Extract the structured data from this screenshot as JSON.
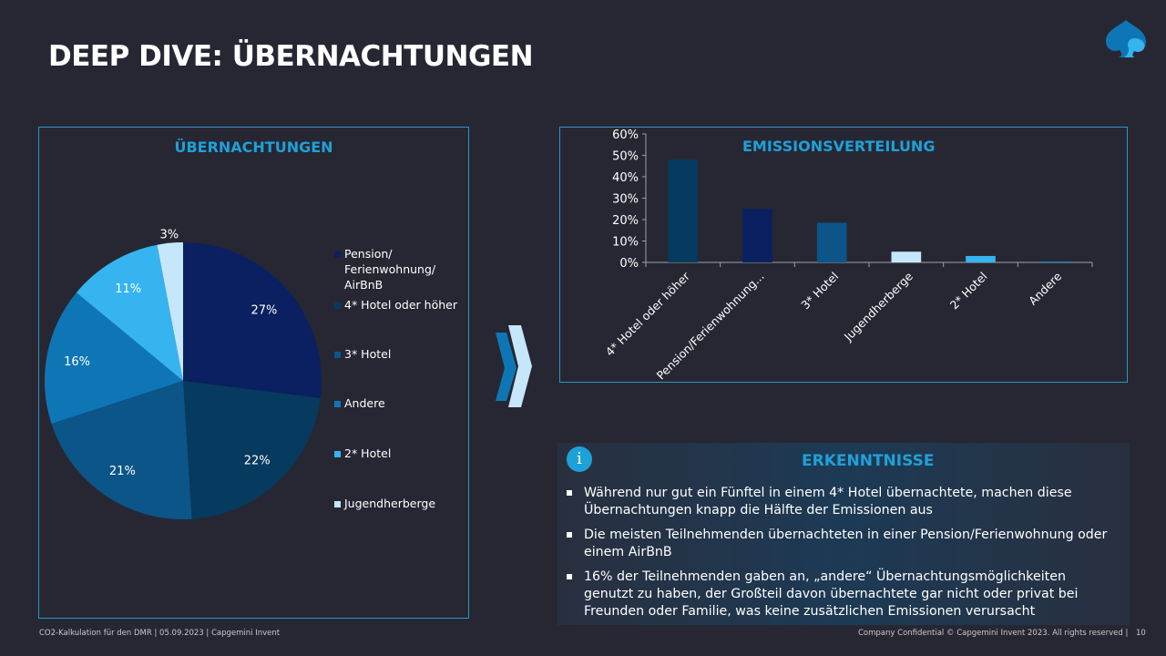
{
  "slide": {
    "title": "DEEP DIVE: ÜBERNACHTUNGEN",
    "logo_icon": "spade-logo-icon"
  },
  "pie_panel": {
    "title": "ÜBERNACHTUNGEN"
  },
  "bar_panel": {
    "title": "EMISSIONSVERTEILUNG"
  },
  "insights": {
    "icon": "info-icon",
    "icon_glyph": "i",
    "title": "ERKENNTNISSE",
    "bullets": [
      "Während nur gut ein Fünftel in einem 4* Hotel übernachtete, machen diese Übernachtungen knapp die Hälfte der Emissionen aus",
      "Die meisten Teilnehmenden übernachteten in einer Pension/Ferienwohnung oder einem AirBnB",
      "16% der Teilnehmenden gaben an, „andere“ Übernachtungsmöglichkeiten genutzt zu haben, der Großteil davon übernachtete gar nicht oder privat bei Freunden oder Familie, was keine zusätzlichen Emissionen verursacht"
    ]
  },
  "footer": {
    "left": "CO2-Kalkulation für den DMR | 05.09.2023 | Capgemini Invent",
    "right": "Company Confidential © Capgemini Invent 2023. All rights reserved  |",
    "page": "10"
  },
  "colors": {
    "accent": "#1ea1d8",
    "background": "#262733"
  },
  "chart_data": [
    {
      "type": "pie",
      "title": "ÜBERNACHTUNGEN",
      "categories": [
        "Pension/ Ferienwohnung/ AirBnB",
        "4* Hotel oder höher",
        "3* Hotel",
        "Andere",
        "2* Hotel",
        "Jugendherberge"
      ],
      "values": [
        27,
        22,
        21,
        16,
        11,
        3
      ],
      "labels": [
        "27%",
        "22%",
        "21%",
        "16%",
        "11%",
        "3%"
      ],
      "colors": [
        "#0a2060",
        "#063a5e",
        "#0b5589",
        "#0f76b5",
        "#35b4f0",
        "#c6e6fa"
      ],
      "legend": "right",
      "legend_lines": [
        [
          "Pension/",
          "Ferienwohnung/",
          "AirBnB"
        ],
        [
          "4* Hotel oder höher"
        ],
        [
          "3* Hotel"
        ],
        [
          "Andere"
        ],
        [
          "2* Hotel"
        ],
        [
          "Jugendherberge"
        ]
      ]
    },
    {
      "type": "bar",
      "title": "EMISSIONSVERTEILUNG",
      "categories": [
        "4* Hotel oder höher",
        "Pension/Ferienwohnung...",
        "3* Hotel",
        "Jugendherberge",
        "2* Hotel",
        "Andere"
      ],
      "values": [
        48,
        25,
        18.5,
        5,
        3,
        0.5
      ],
      "colors": [
        "#063a5e",
        "#0a2060",
        "#0b5589",
        "#c6e6fa",
        "#35b4f0",
        "#0f76b5"
      ],
      "xlabel": "",
      "ylabel": "",
      "ylim": [
        0,
        60
      ],
      "yticks": [
        "0%",
        "10%",
        "20%",
        "30%",
        "40%",
        "50%",
        "60%"
      ],
      "grid": false,
      "legend": "none"
    }
  ]
}
